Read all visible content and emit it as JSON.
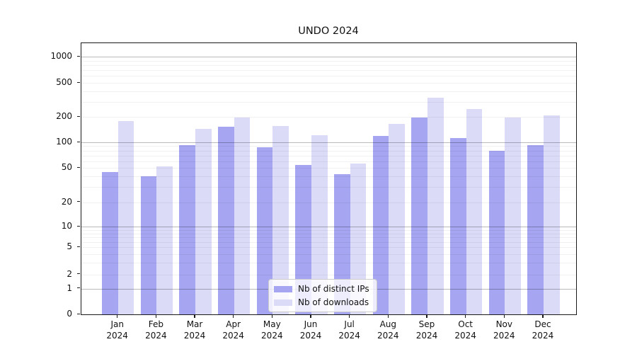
{
  "title": "UNDO 2024",
  "chart_data": {
    "type": "bar",
    "categories": [
      "Jan",
      "Feb",
      "Mar",
      "Apr",
      "May",
      "Jun",
      "Jul",
      "Aug",
      "Sep",
      "Oct",
      "Nov",
      "Dec"
    ],
    "category_year": "2024",
    "series": [
      {
        "name": "Nb of distinct IPs",
        "color": "#a5a5f2",
        "values": [
          45,
          40,
          92,
          152,
          88,
          54,
          42,
          119,
          196,
          113,
          79,
          93
        ]
      },
      {
        "name": "Nb of downloads",
        "color": "#dbdbf8",
        "values": [
          180,
          52,
          145,
          196,
          156,
          121,
          56,
          165,
          335,
          249,
          196,
          209
        ]
      }
    ],
    "title": "UNDO 2024",
    "xlabel": "",
    "ylabel": "",
    "yscale": "symlog",
    "ylim": [
      0,
      1500
    ],
    "yticks": [
      {
        "value": 1000,
        "label": "1000"
      },
      {
        "value": 500,
        "label": "500"
      },
      {
        "value": 200,
        "label": "200"
      },
      {
        "value": 100,
        "label": "100"
      },
      {
        "value": 50,
        "label": "50"
      },
      {
        "value": 20,
        "label": "20"
      },
      {
        "value": 10,
        "label": "10"
      },
      {
        "value": 5,
        "label": "5"
      },
      {
        "value": 2,
        "label": "2"
      },
      {
        "value": 1,
        "label": "1"
      },
      {
        "value": 0,
        "label": "0"
      }
    ],
    "grid": "on",
    "legend_position": "lower-center-inside"
  },
  "legend": {
    "items": [
      {
        "label": "Nb of distinct IPs",
        "color": "#a5a5f2"
      },
      {
        "label": "Nb of downloads",
        "color": "#dbdbf8"
      }
    ]
  }
}
